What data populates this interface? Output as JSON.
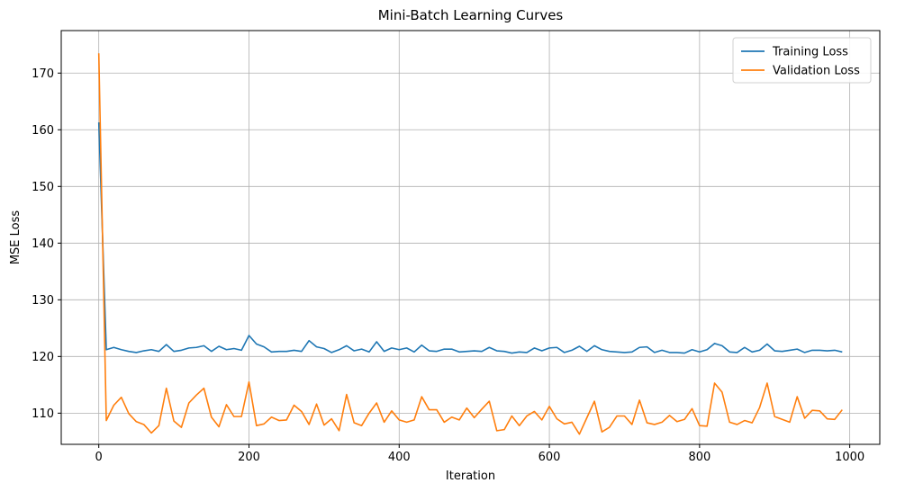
{
  "chart_data": {
    "type": "line",
    "title": "Mini-Batch Learning Curves",
    "xlabel": "Iteration",
    "ylabel": "MSE Loss",
    "xlim": [
      -50,
      1040
    ],
    "ylim": [
      104.5,
      177.5
    ],
    "xticks": [
      0,
      200,
      400,
      600,
      800,
      1000
    ],
    "yticks": [
      110,
      120,
      130,
      140,
      150,
      160,
      170
    ],
    "grid": true,
    "legend_position": "top-right",
    "x": [
      0,
      10,
      20,
      30,
      40,
      50,
      60,
      70,
      80,
      90,
      100,
      110,
      120,
      130,
      140,
      150,
      160,
      170,
      180,
      190,
      200,
      210,
      220,
      230,
      240,
      250,
      260,
      270,
      280,
      290,
      300,
      310,
      320,
      330,
      340,
      350,
      360,
      370,
      380,
      390,
      400,
      410,
      420,
      430,
      440,
      450,
      460,
      470,
      480,
      490,
      500,
      510,
      520,
      530,
      540,
      550,
      560,
      570,
      580,
      590,
      600,
      610,
      620,
      630,
      640,
      650,
      660,
      670,
      680,
      690,
      700,
      710,
      720,
      730,
      740,
      750,
      760,
      770,
      780,
      790,
      800,
      810,
      820,
      830,
      840,
      850,
      860,
      870,
      880,
      890,
      900,
      910,
      920,
      930,
      940,
      950,
      960,
      970,
      980,
      990
    ],
    "series": [
      {
        "name": "Training Loss",
        "color": "#1f77b4",
        "values": [
          161.3,
          121.2,
          121.6,
          121.2,
          120.9,
          120.7,
          121.0,
          121.2,
          120.9,
          122.1,
          120.9,
          121.1,
          121.5,
          121.6,
          121.9,
          120.9,
          121.8,
          121.2,
          121.4,
          121.1,
          123.7,
          122.2,
          121.7,
          120.8,
          120.9,
          120.9,
          121.1,
          120.9,
          122.8,
          121.7,
          121.4,
          120.7,
          121.2,
          121.9,
          121.0,
          121.3,
          120.8,
          122.6,
          120.9,
          121.5,
          121.2,
          121.5,
          120.8,
          122.0,
          121.0,
          120.9,
          121.3,
          121.3,
          120.8,
          120.9,
          121.0,
          120.9,
          121.6,
          121.0,
          120.9,
          120.6,
          120.8,
          120.7,
          121.5,
          121.0,
          121.5,
          121.6,
          120.7,
          121.1,
          121.8,
          120.9,
          121.9,
          121.2,
          120.9,
          120.8,
          120.7,
          120.8,
          121.6,
          121.7,
          120.7,
          121.1,
          120.7,
          120.7,
          120.6,
          121.2,
          120.8,
          121.2,
          122.3,
          121.9,
          120.8,
          120.7,
          121.6,
          120.8,
          121.1,
          122.2,
          121.0,
          120.9,
          121.1,
          121.3,
          120.7,
          121.1,
          121.1,
          121.0,
          121.1,
          120.8
        ]
      },
      {
        "name": "Validation Loss",
        "color": "#ff7f0e",
        "values": [
          173.5,
          108.7,
          111.4,
          112.8,
          109.9,
          108.5,
          108.0,
          106.5,
          107.8,
          114.4,
          108.6,
          107.5,
          111.8,
          113.2,
          114.4,
          109.3,
          107.6,
          111.5,
          109.4,
          109.4,
          115.5,
          107.8,
          108.1,
          109.3,
          108.7,
          108.8,
          111.4,
          110.3,
          108.0,
          111.6,
          107.9,
          109.0,
          106.9,
          113.3,
          108.3,
          107.8,
          110.0,
          111.8,
          108.4,
          110.4,
          108.8,
          108.4,
          108.8,
          112.9,
          110.6,
          110.6,
          108.4,
          109.3,
          108.8,
          110.9,
          109.2,
          110.7,
          112.1,
          106.9,
          107.1,
          109.5,
          107.8,
          109.5,
          110.3,
          108.8,
          111.2,
          109.0,
          108.1,
          108.4,
          106.3,
          109.2,
          112.1,
          106.7,
          107.5,
          109.5,
          109.5,
          108.0,
          112.3,
          108.3,
          108.0,
          108.4,
          109.6,
          108.5,
          108.9,
          110.8,
          107.8,
          107.7,
          115.3,
          113.7,
          108.4,
          108.0,
          108.7,
          108.3,
          111.0,
          115.3,
          109.4,
          108.9,
          108.4,
          112.9,
          109.1,
          110.5,
          110.4,
          109.0,
          108.9,
          110.6
        ]
      }
    ]
  }
}
